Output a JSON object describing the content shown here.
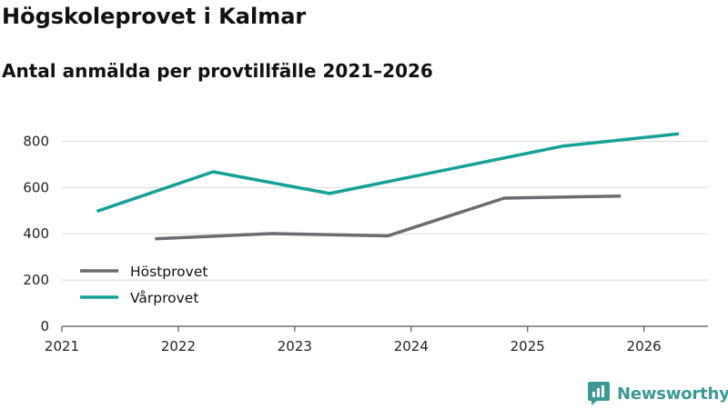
{
  "chart_data": {
    "type": "line",
    "title": "Högskoleprovet i Kalmar",
    "subtitle": "Antal anmälda per provtillfälle 2021–2026",
    "xlabel": "",
    "ylabel": "",
    "xlim": [
      2021,
      2026.55
    ],
    "ylim": [
      0,
      900
    ],
    "x_ticks": [
      "2021",
      "2022",
      "2023",
      "2024",
      "2025",
      "2026"
    ],
    "y_ticks": [
      "0",
      "200",
      "400",
      "600",
      "800"
    ],
    "grid": true,
    "legend_position": "bottom-left",
    "series": [
      {
        "name": "Höstprovet",
        "color": "#6b6b70",
        "points": [
          {
            "x": 2021.8,
            "y": 378
          },
          {
            "x": 2022.8,
            "y": 401
          },
          {
            "x": 2023.8,
            "y": 391
          },
          {
            "x": 2024.8,
            "y": 554
          },
          {
            "x": 2025.8,
            "y": 563
          }
        ]
      },
      {
        "name": "Vårprovet",
        "color": "#14a196",
        "points": [
          {
            "x": 2021.3,
            "y": 497
          },
          {
            "x": 2022.3,
            "y": 668
          },
          {
            "x": 2023.3,
            "y": 574
          },
          {
            "x": 2025.3,
            "y": 779
          },
          {
            "x": 2026.3,
            "y": 832
          }
        ]
      }
    ]
  },
  "brand": {
    "name": "Newsworthy",
    "color": "#3a9a92"
  }
}
